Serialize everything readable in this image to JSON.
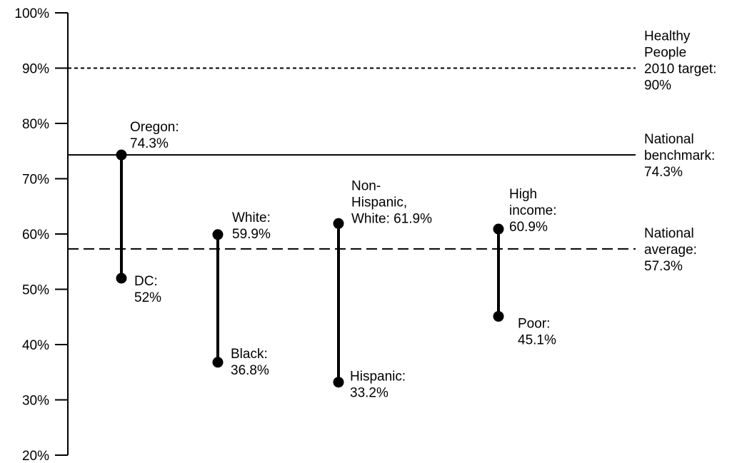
{
  "chart_data": {
    "type": "dumbbell",
    "title": "",
    "xlabel": "",
    "ylabel": "",
    "ylim": [
      20,
      100
    ],
    "yticks": [
      "20%",
      "30%",
      "40%",
      "50%",
      "60%",
      "70%",
      "80%",
      "90%",
      "100%"
    ],
    "grid": false,
    "reference_lines": [
      {
        "value": 90,
        "style": "dotted",
        "label": [
          "Healthy",
          "People",
          "2010 target:",
          "90%"
        ]
      },
      {
        "value": 74.3,
        "style": "solid",
        "label": [
          "National",
          "benchmark:",
          "74.3%"
        ]
      },
      {
        "value": 57.3,
        "style": "dashed",
        "label": [
          "National",
          "average:",
          "57.3%"
        ]
      }
    ],
    "pairs": [
      {
        "high": {
          "value": 74.3,
          "label": [
            "Oregon:",
            "74.3%"
          ]
        },
        "low": {
          "value": 52,
          "label": [
            "DC:",
            "52%"
          ]
        }
      },
      {
        "high": {
          "value": 59.9,
          "label": [
            "White:",
            "59.9%"
          ]
        },
        "low": {
          "value": 36.8,
          "label": [
            "Black:",
            "36.8%"
          ]
        }
      },
      {
        "high": {
          "value": 61.9,
          "label": [
            "Non-",
            "Hispanic,",
            "White: 61.9%"
          ]
        },
        "low": {
          "value": 33.2,
          "label": [
            "Hispanic:",
            "33.2%"
          ]
        }
      },
      {
        "high": {
          "value": 60.9,
          "label": [
            "High",
            "income:",
            "60.9%"
          ]
        },
        "low": {
          "value": 45.1,
          "label": [
            "Poor:",
            "45.1%"
          ]
        }
      }
    ]
  }
}
